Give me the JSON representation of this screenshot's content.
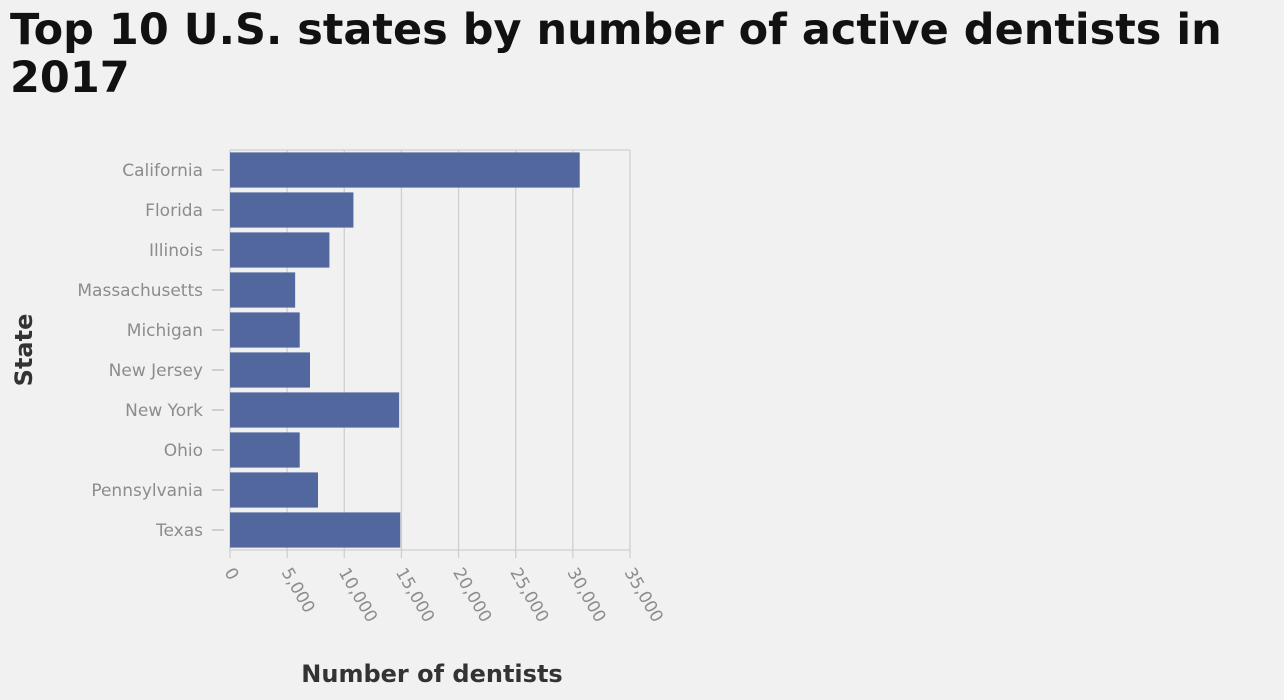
{
  "chart_data": {
    "type": "bar",
    "orientation": "horizontal",
    "title": "Top 10 U.S. states by number of active dentists in 2017",
    "xlabel": "Number of dentists",
    "ylabel": "State",
    "categories": [
      "California",
      "Florida",
      "Illinois",
      "Massachusetts",
      "Michigan",
      "New Jersey",
      "New York",
      "Ohio",
      "Pennsylvania",
      "Texas"
    ],
    "values": [
      30600,
      10800,
      8700,
      5700,
      6100,
      7000,
      14800,
      6100,
      7700,
      14900
    ],
    "xlim": [
      0,
      35000
    ],
    "x_ticks": [
      "0",
      "5,000",
      "10,000",
      "15,000",
      "20,000",
      "25,000",
      "30,000",
      "35,000"
    ],
    "grid": "vertical",
    "bar_color": "#52679e"
  }
}
